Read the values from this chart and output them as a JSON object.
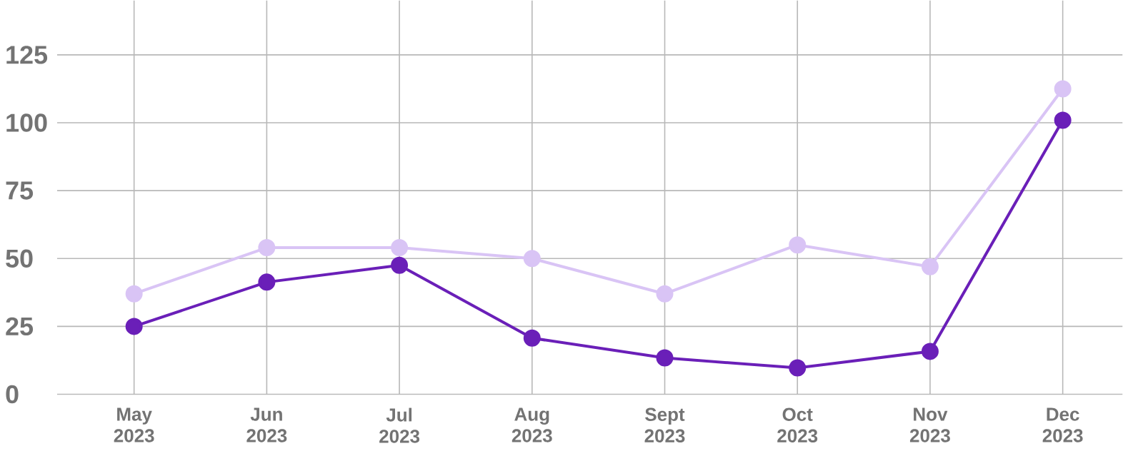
{
  "chart_data": {
    "type": "line",
    "categories": [
      "May 2023",
      "Jun 2023",
      "Jul 2023",
      "Aug 2023",
      "Sept 2023",
      "Oct 2023",
      "Nov 2023",
      "Dec 2023"
    ],
    "series": [
      {
        "color": "#d9c4f5",
        "values": [
          37,
          54,
          54,
          50,
          37,
          55,
          47,
          112.5
        ]
      },
      {
        "color": "#6a1fb8",
        "values": [
          25,
          41.3,
          47.5,
          20.7,
          13.4,
          9.7,
          15.8,
          100.9
        ]
      }
    ],
    "ylim": [
      0,
      145
    ],
    "yticks": [
      0,
      25,
      50,
      75,
      100,
      125
    ],
    "grid": true,
    "marker": "circle",
    "line_style": "solid"
  }
}
